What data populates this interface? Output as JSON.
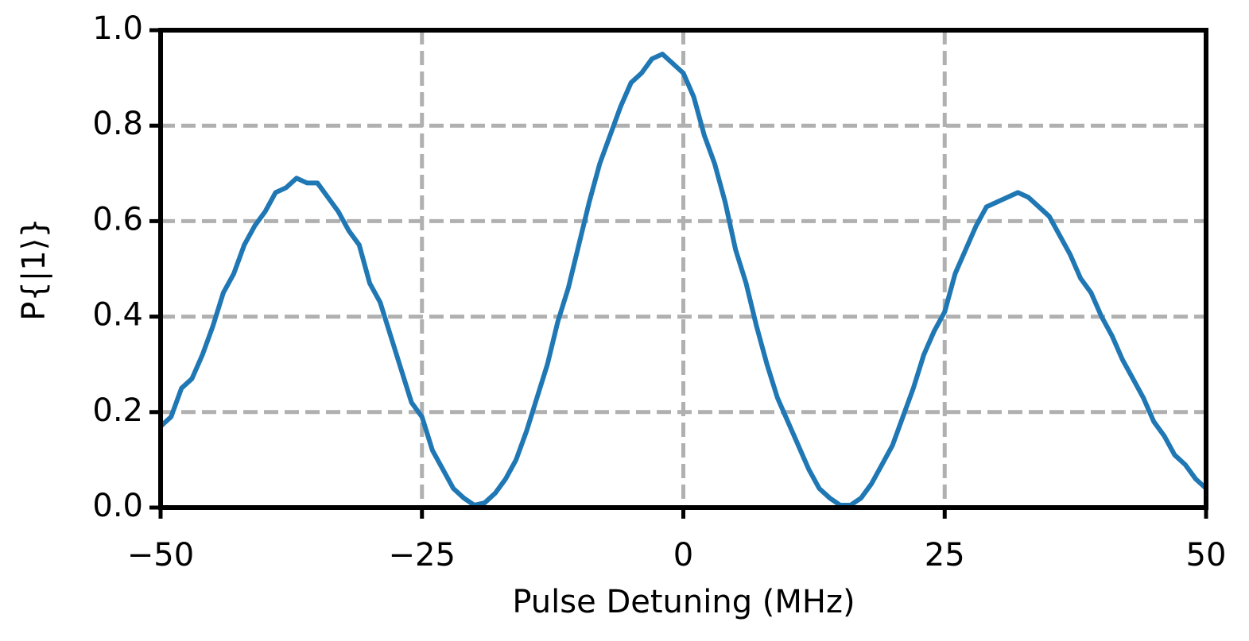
{
  "chart_data": {
    "type": "line",
    "xlabel": "Pulse Detuning (MHz)",
    "ylabel": "P{|1⟩}",
    "xlim": [
      -50,
      50
    ],
    "ylim": [
      0,
      1
    ],
    "xticks": [
      {
        "value": -50,
        "label": "−50"
      },
      {
        "value": -25,
        "label": "−25"
      },
      0,
      25,
      50
    ],
    "yticks": [
      {
        "value": 0,
        "label": "0.0"
      },
      0.2,
      0.4,
      0.6,
      0.8,
      {
        "value": 1,
        "label": "1.0"
      }
    ],
    "grid": true,
    "series": [
      {
        "name": "P",
        "color": "#1f77b4",
        "x": [
          -50,
          -49,
          -48,
          -47,
          -46,
          -45,
          -44,
          -43,
          -42,
          -41,
          -40,
          -39,
          -38,
          -37,
          -36,
          -35,
          -34,
          -33,
          -32,
          -31,
          -30,
          -29,
          -28,
          -27,
          -26,
          -25,
          -24,
          -23,
          -22,
          -21,
          -20,
          -19,
          -18,
          -17,
          -16,
          -15,
          -14,
          -13,
          -12,
          -11,
          -10,
          -9,
          -8,
          -7,
          -6,
          -5,
          -4,
          -3,
          -2,
          -1,
          0,
          1,
          2,
          3,
          4,
          5,
          6,
          7,
          8,
          9,
          10,
          11,
          12,
          13,
          14,
          15,
          16,
          17,
          18,
          19,
          20,
          21,
          22,
          23,
          24,
          25,
          26,
          27,
          28,
          29,
          30,
          31,
          32,
          33,
          34,
          35,
          36,
          37,
          38,
          39,
          40,
          41,
          42,
          43,
          44,
          45,
          46,
          47,
          48,
          49,
          50
        ],
        "values": [
          0.17,
          0.19,
          0.25,
          0.27,
          0.32,
          0.38,
          0.45,
          0.49,
          0.55,
          0.59,
          0.62,
          0.66,
          0.67,
          0.69,
          0.68,
          0.68,
          0.65,
          0.62,
          0.58,
          0.55,
          0.47,
          0.43,
          0.36,
          0.29,
          0.22,
          0.19,
          0.12,
          0.08,
          0.04,
          0.02,
          0.005,
          0.01,
          0.03,
          0.06,
          0.1,
          0.16,
          0.23,
          0.3,
          0.39,
          0.46,
          0.55,
          0.64,
          0.72,
          0.78,
          0.84,
          0.89,
          0.91,
          0.94,
          0.95,
          0.93,
          0.91,
          0.86,
          0.78,
          0.72,
          0.64,
          0.54,
          0.47,
          0.38,
          0.3,
          0.23,
          0.18,
          0.13,
          0.08,
          0.04,
          0.02,
          0.005,
          0.005,
          0.02,
          0.05,
          0.09,
          0.13,
          0.19,
          0.25,
          0.32,
          0.37,
          0.41,
          0.49,
          0.54,
          0.59,
          0.63,
          0.64,
          0.65,
          0.66,
          0.65,
          0.63,
          0.61,
          0.57,
          0.53,
          0.48,
          0.45,
          0.4,
          0.36,
          0.31,
          0.27,
          0.23,
          0.18,
          0.15,
          0.11,
          0.09,
          0.06,
          0.04
        ]
      }
    ]
  }
}
